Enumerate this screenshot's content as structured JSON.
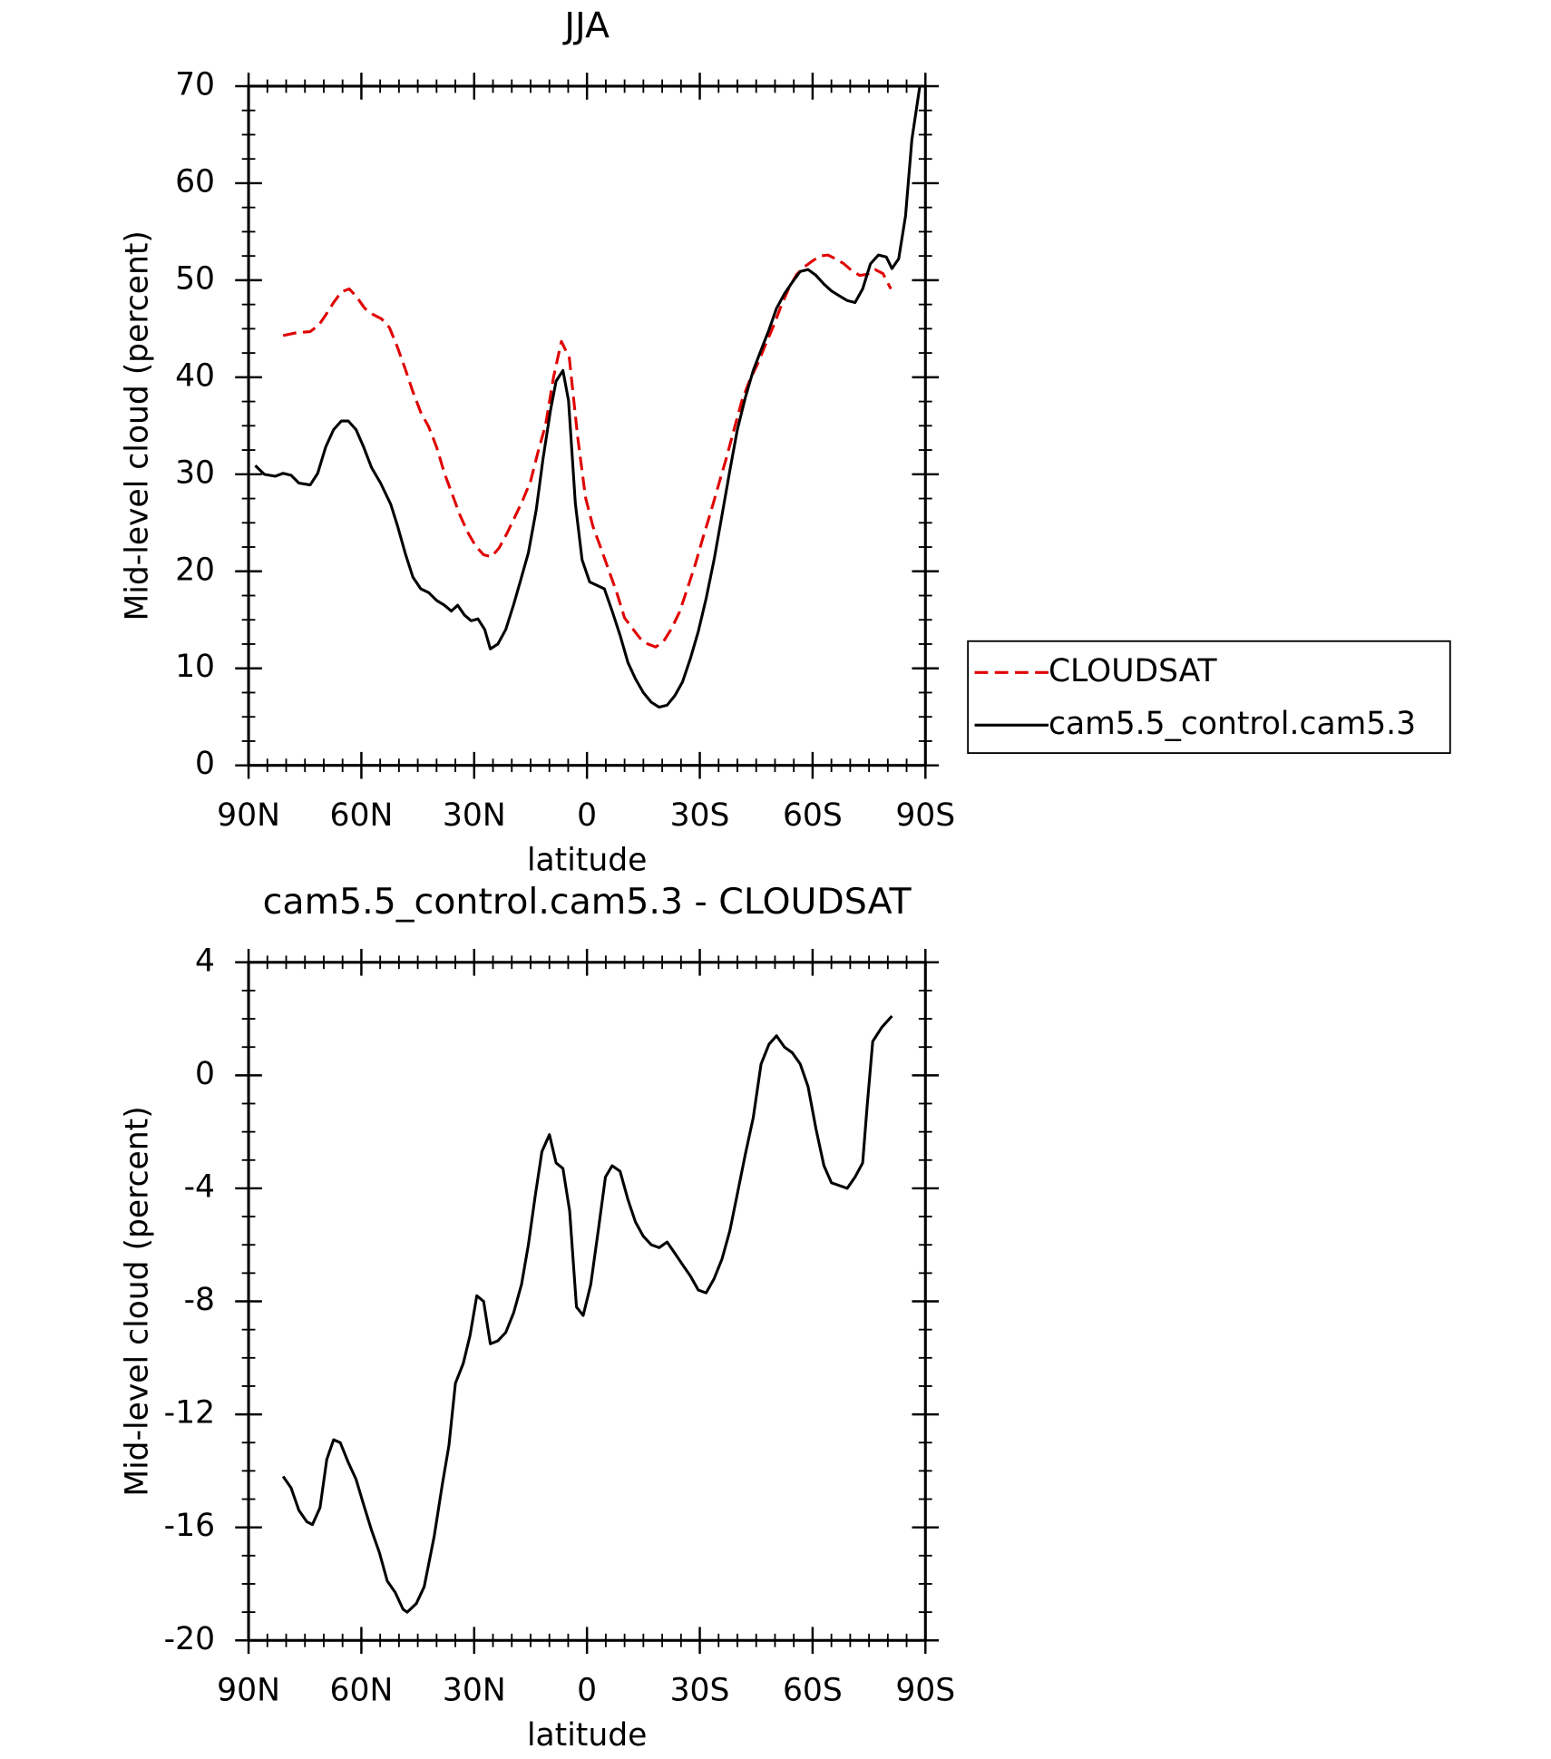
{
  "chart_data": [
    {
      "type": "line",
      "title": "JJA",
      "xlabel": "latitude",
      "ylabel": "Mid-level cloud (percent)",
      "xlim": [
        90,
        -90
      ],
      "xticks": [
        {
          "value": 90,
          "label": "90N"
        },
        {
          "value": 60,
          "label": "60N"
        },
        {
          "value": 30,
          "label": "30N"
        },
        0,
        {
          "value": -30,
          "label": "30S"
        },
        {
          "value": -60,
          "label": "60S"
        },
        {
          "value": -90,
          "label": "90S"
        }
      ],
      "ylim": [
        0,
        70
      ],
      "yticks": [
        0,
        10,
        20,
        30,
        40,
        50,
        60,
        70
      ],
      "legend": "right",
      "series": [
        {
          "name": "CLOUDSAT",
          "color": "#e00000",
          "dash": true,
          "x": [
            80.8,
            77.2,
            73.6,
            71.3,
            69.5,
            67.4,
            65.3,
            63.2,
            61.1,
            59.1,
            57.0,
            54.6,
            52.5,
            50.4,
            48.3,
            46.3,
            44.2,
            42.1,
            40.0,
            37.9,
            35.8,
            33.8,
            31.7,
            29.6,
            27.5,
            25.4,
            23.4,
            21.3,
            19.2,
            17.1,
            15.0,
            13.1,
            11.0,
            8.9,
            6.8,
            4.7,
            2.5,
            0.4,
            -1.6,
            -3.7,
            -5.8,
            -7.9,
            -10.0,
            -12.1,
            -14.1,
            -16.2,
            -18.3,
            -20.4,
            -22.5,
            -24.6,
            -26.6,
            -28.7,
            -30.8,
            -32.9,
            -35.0,
            -37.0,
            -39.1,
            -41.2,
            -43.3,
            -45.4,
            -47.5,
            -49.5,
            -51.6,
            -53.7,
            -55.8,
            -57.9,
            -60.0,
            -62.0,
            -64.1,
            -66.2,
            -68.3,
            -70.4,
            -72.5,
            -74.5,
            -76.6,
            -78.7,
            -80.8
          ],
          "values": [
            44.3,
            44.6,
            44.7,
            45.4,
            46.4,
            47.7,
            48.8,
            49.1,
            48.2,
            47.1,
            46.5,
            46.0,
            45.1,
            43.1,
            40.8,
            38.5,
            36.4,
            34.9,
            32.8,
            30.1,
            27.9,
            25.8,
            24.0,
            22.6,
            21.7,
            21.5,
            22.4,
            23.9,
            25.6,
            27.3,
            29.3,
            32.2,
            35.1,
            40.0,
            43.7,
            42.0,
            33.9,
            27.6,
            24.6,
            22.4,
            20.1,
            17.8,
            15.2,
            14.1,
            13.1,
            12.5,
            12.2,
            12.8,
            14.1,
            15.8,
            18.1,
            20.6,
            23.4,
            26.1,
            28.9,
            31.6,
            34.6,
            37.6,
            39.7,
            41.4,
            43.4,
            45.2,
            47.3,
            49.2,
            50.6,
            51.4,
            52.0,
            52.5,
            52.6,
            52.2,
            51.7,
            51.0,
            50.5,
            50.6,
            51.1,
            50.7,
            49.1
          ]
        },
        {
          "name": "cam5.5_control.cam5.3",
          "color": "#000000",
          "dash": false,
          "x": [
            88.2,
            85.8,
            82.9,
            80.8,
            78.7,
            76.6,
            73.6,
            71.6,
            69.5,
            67.4,
            65.3,
            63.5,
            61.4,
            59.4,
            57.3,
            54.9,
            52.2,
            50.4,
            48.3,
            46.3,
            44.2,
            42.1,
            40.0,
            37.9,
            36.1,
            34.4,
            32.6,
            30.8,
            29.0,
            27.2,
            25.7,
            23.7,
            21.6,
            19.5,
            17.7,
            15.6,
            13.5,
            11.7,
            9.7,
            8.2,
            6.4,
            4.9,
            3.1,
            1.3,
            -0.7,
            -4.6,
            -6.7,
            -8.8,
            -10.9,
            -12.9,
            -15.0,
            -17.1,
            -19.2,
            -21.3,
            -23.4,
            -25.4,
            -27.5,
            -29.6,
            -31.7,
            -33.8,
            -35.9,
            -38.0,
            -40.0,
            -42.1,
            -44.2,
            -46.3,
            -48.4,
            -50.4,
            -52.5,
            -54.6,
            -56.7,
            -58.8,
            -60.9,
            -63.0,
            -65.0,
            -67.1,
            -69.2,
            -71.3,
            -73.3,
            -75.4,
            -77.5,
            -79.6,
            -81.1,
            -82.9,
            -84.7,
            -86.4,
            -88.5
          ],
          "values": [
            30.9,
            30.0,
            29.8,
            30.1,
            29.9,
            29.1,
            28.9,
            30.1,
            32.8,
            34.6,
            35.5,
            35.5,
            34.6,
            32.8,
            30.7,
            29.1,
            26.9,
            24.7,
            21.8,
            19.4,
            18.2,
            17.8,
            17.0,
            16.5,
            15.9,
            16.5,
            15.5,
            14.9,
            15.1,
            14.0,
            12.0,
            12.5,
            14.0,
            16.6,
            19.0,
            21.9,
            26.3,
            31.6,
            36.6,
            39.6,
            40.7,
            37.6,
            27.0,
            21.2,
            18.9,
            18.2,
            15.9,
            13.4,
            10.6,
            8.9,
            7.5,
            6.5,
            6.0,
            6.2,
            7.2,
            8.6,
            11.0,
            13.8,
            17.2,
            21.2,
            25.8,
            30.4,
            34.6,
            37.9,
            40.7,
            42.8,
            44.9,
            47.1,
            48.6,
            49.8,
            50.9,
            51.1,
            50.5,
            49.6,
            48.9,
            48.4,
            47.9,
            47.7,
            49.1,
            51.7,
            52.6,
            52.4,
            51.2,
            52.2,
            56.6,
            64.5,
            70.0
          ]
        }
      ]
    },
    {
      "type": "line",
      "title": "cam5.5_control.cam5.3 - CLOUDSAT",
      "xlabel": "latitude",
      "ylabel": "Mid-level cloud (percent)",
      "xlim": [
        90,
        -90
      ],
      "xticks": [
        {
          "value": 90,
          "label": "90N"
        },
        {
          "value": 60,
          "label": "60N"
        },
        {
          "value": 30,
          "label": "30N"
        },
        0,
        {
          "value": -30,
          "label": "30S"
        },
        {
          "value": -60,
          "label": "60S"
        },
        {
          "value": -90,
          "label": "90S"
        }
      ],
      "ylim": [
        -20,
        4
      ],
      "yticks": [
        -20,
        -16,
        -12,
        -8,
        -4,
        0,
        4
      ],
      "series": [
        {
          "color": "#000000",
          "dash": false,
          "x": [
            80.8,
            78.7,
            76.6,
            74.5,
            73.0,
            71.0,
            69.2,
            67.4,
            65.6,
            63.5,
            61.4,
            59.4,
            57.3,
            55.2,
            53.1,
            51.0,
            48.9,
            47.8,
            45.4,
            43.3,
            40.6,
            38.5,
            36.7,
            35.0,
            32.9,
            31.1,
            29.3,
            27.5,
            25.7,
            23.7,
            21.6,
            19.5,
            17.4,
            15.6,
            13.8,
            12.0,
            10.0,
            8.2,
            6.4,
            4.6,
            2.8,
            1.0,
            -1.0,
            -3.1,
            -4.9,
            -6.7,
            -8.8,
            -10.9,
            -12.9,
            -15.0,
            -17.1,
            -19.2,
            -21.3,
            -23.4,
            -25.4,
            -27.5,
            -29.6,
            -31.7,
            -33.8,
            -35.9,
            -38.0,
            -40.0,
            -42.1,
            -44.2,
            -46.3,
            -48.4,
            -50.4,
            -52.5,
            -54.6,
            -56.7,
            -58.8,
            -60.9,
            -63.0,
            -65.0,
            -67.1,
            -69.2,
            -71.3,
            -73.3,
            -74.5,
            -76.0,
            -78.4,
            -81.1
          ],
          "values": [
            -14.2,
            -14.6,
            -15.4,
            -15.8,
            -15.9,
            -15.3,
            -13.6,
            -12.9,
            -13.0,
            -13.7,
            -14.3,
            -15.2,
            -16.1,
            -16.9,
            -17.9,
            -18.3,
            -18.9,
            -19.0,
            -18.7,
            -18.1,
            -16.3,
            -14.5,
            -13.1,
            -10.9,
            -10.2,
            -9.2,
            -7.8,
            -8.0,
            -9.5,
            -9.4,
            -9.1,
            -8.4,
            -7.4,
            -6.0,
            -4.3,
            -2.7,
            -2.1,
            -3.1,
            -3.3,
            -4.8,
            -8.2,
            -8.5,
            -7.4,
            -5.4,
            -3.6,
            -3.2,
            -3.4,
            -4.4,
            -5.2,
            -5.7,
            -6.0,
            -6.1,
            -5.9,
            -6.3,
            -6.7,
            -7.1,
            -7.6,
            -7.7,
            -7.2,
            -6.5,
            -5.5,
            -4.2,
            -2.8,
            -1.5,
            0.4,
            1.1,
            1.4,
            1.0,
            0.8,
            0.4,
            -0.4,
            -1.9,
            -3.2,
            -3.8,
            -3.9,
            -4.0,
            -3.6,
            -3.1,
            -1.1,
            1.2,
            1.7,
            2.1
          ]
        }
      ]
    }
  ]
}
